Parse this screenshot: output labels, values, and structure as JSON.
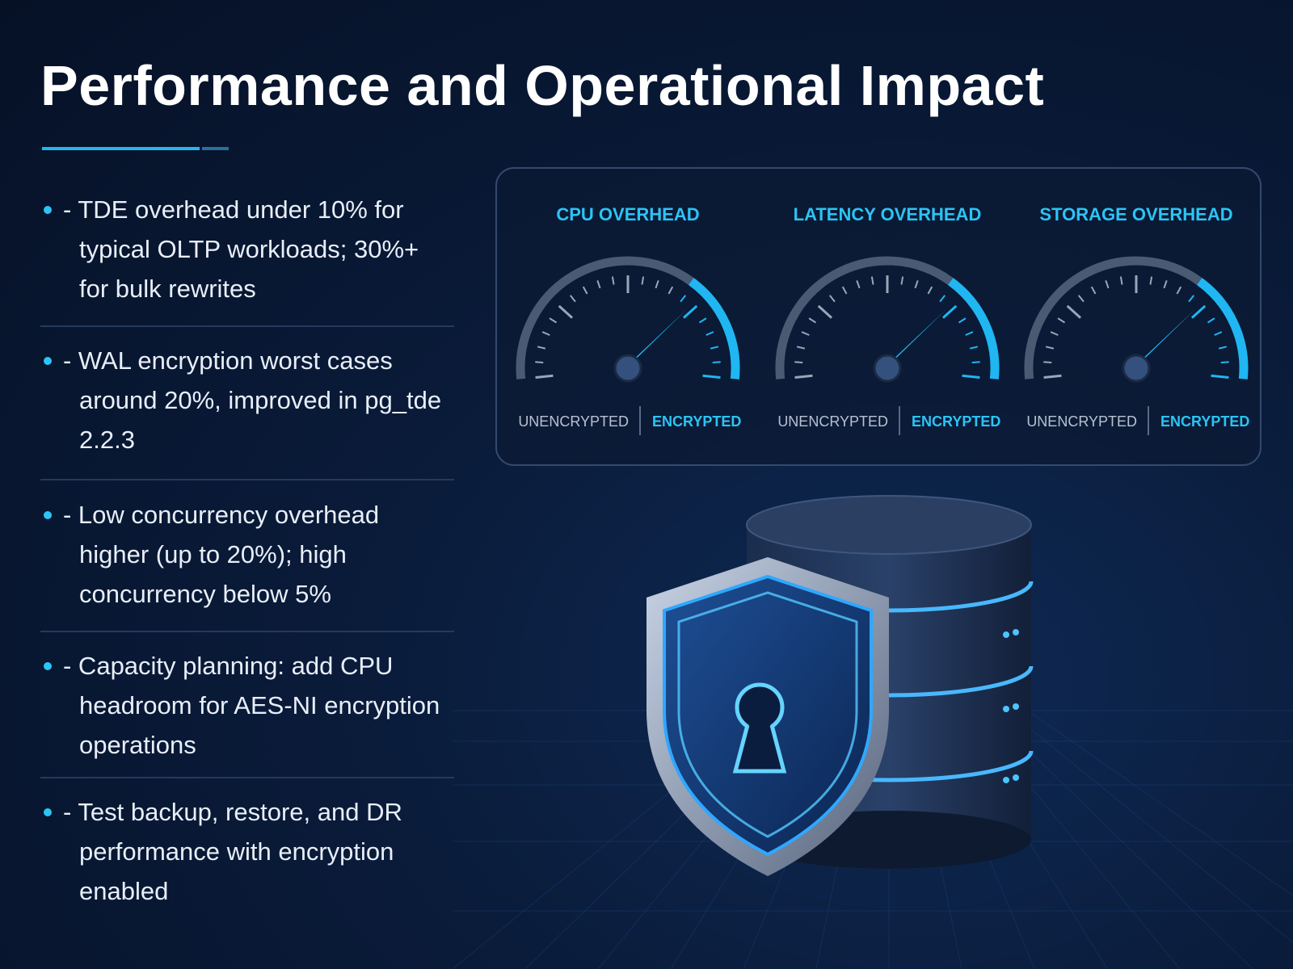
{
  "header": {
    "title": "Performance and Operational Impact"
  },
  "bullets": [
    "- TDE overhead under 10% for typical OLTP workloads; 30%+ for bulk rewrites",
    "- WAL encryption worst cases around 20%, improved in pg_tde 2.2.3",
    "- Low concurrency overhead higher (up to 20%); high concurrency below 5%",
    "- Capacity planning: add CPU headroom for AES-NI encryption operations",
    "- Test backup, restore, and DR performance with encryption enabled"
  ],
  "gauges": [
    {
      "title": "CPU OVERHEAD",
      "left_label": "UNENCRYPTED",
      "right_label": "ENCRYPTED"
    },
    {
      "title": "LATENCY OVERHEAD",
      "left_label": "UNENCRYPTED",
      "right_label": "ENCRYPTED"
    },
    {
      "title": "STORAGE OVERHEAD",
      "left_label": "UNENCRYPTED",
      "right_label": "ENCRYPTED"
    }
  ]
}
